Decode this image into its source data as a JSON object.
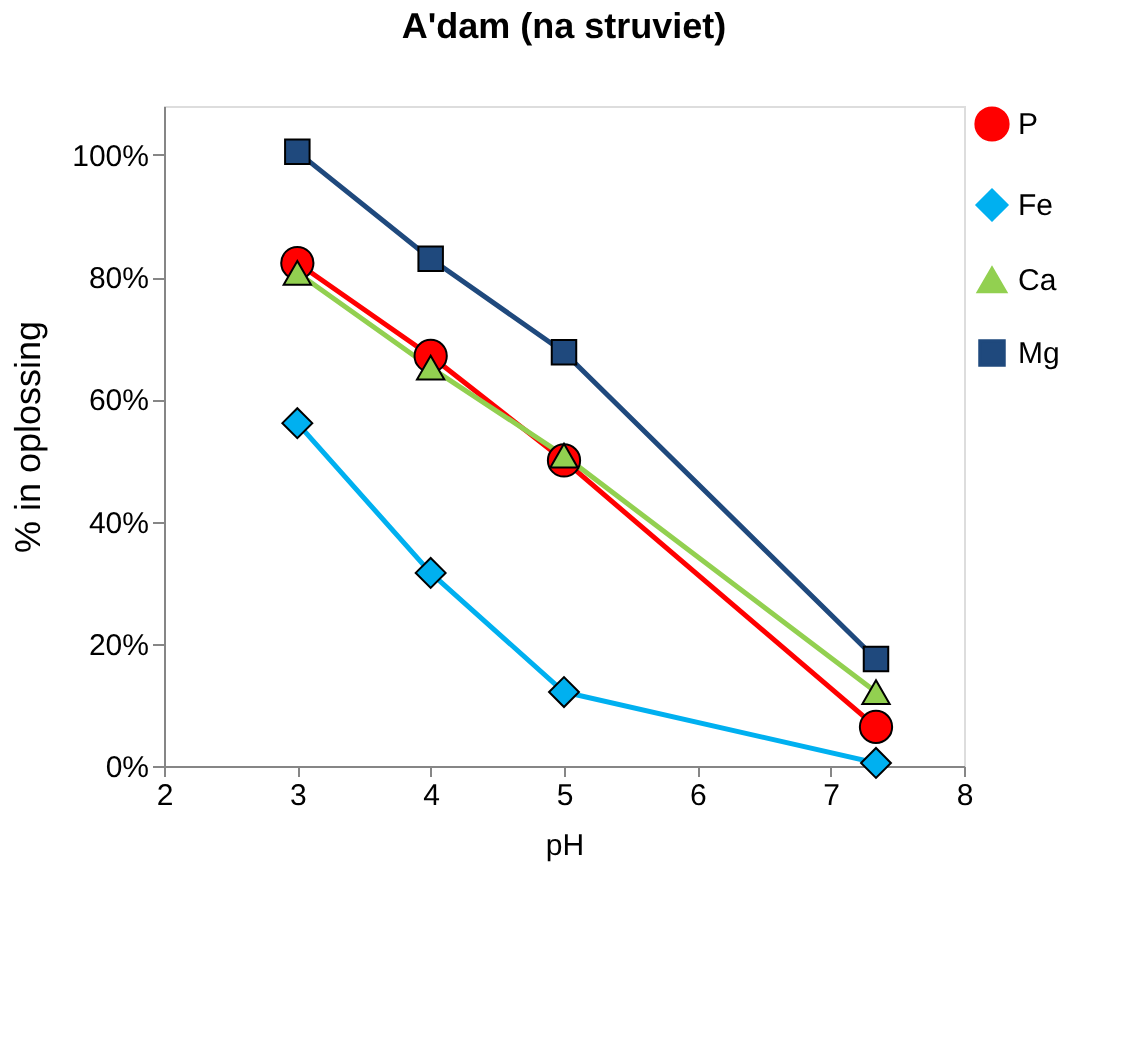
{
  "chart_data": {
    "type": "line",
    "title": "A'dam (na struviet)",
    "xlabel": "pH",
    "ylabel": "% in oplossing",
    "x": [
      3,
      4,
      5,
      7.34
    ],
    "series": [
      {
        "name": "P",
        "color": "#ff0000",
        "marker": "circle",
        "values": [
          82.3,
          67.1,
          50.0,
          6.4
        ]
      },
      {
        "name": "Fe",
        "color": "#00b0f0",
        "marker": "diamond",
        "values": [
          56.1,
          31.6,
          12.1,
          0.5
        ]
      },
      {
        "name": "Ca",
        "color": "#92d050",
        "marker": "triangle",
        "values": [
          80.7,
          65.2,
          50.8,
          12.1
        ]
      },
      {
        "name": "Mg",
        "color": "#1f497d",
        "marker": "square",
        "values": [
          100.5,
          83.0,
          67.7,
          17.5
        ]
      }
    ],
    "xlim": [
      2,
      8
    ],
    "xticks": [
      2,
      3,
      4,
      5,
      6,
      7,
      8
    ],
    "ylim": [
      0,
      108
    ],
    "yticks": [
      {
        "value": 0,
        "label": "0%"
      },
      {
        "value": 20,
        "label": "20%"
      },
      {
        "value": 40,
        "label": "40%"
      },
      {
        "value": 60,
        "label": "60%"
      },
      {
        "value": 80,
        "label": "80%"
      },
      {
        "value": 100,
        "label": "100%"
      }
    ],
    "grid": false,
    "legend": "right"
  }
}
